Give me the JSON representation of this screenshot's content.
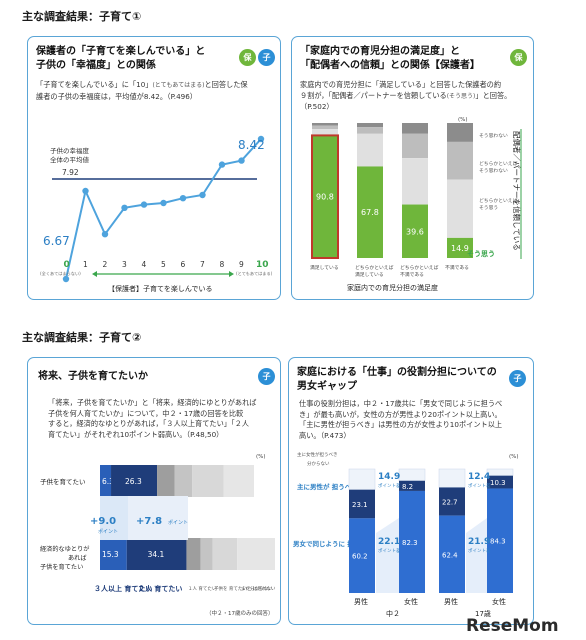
{
  "section1": {
    "title": "主な調査結果：子育て①"
  },
  "section2": {
    "title": "主な調査結果：子育て②"
  },
  "panel_a": {
    "title1": "保護者の「子育てを楽しんでいる」と",
    "title2": "子供の「幸福度」との関係",
    "badge1": "保",
    "badge2": "子",
    "desc1": "「子育てを楽しんでいる」に「10」",
    "desc1_small": "(とてもあてはまる)",
    "desc1_tail": "と回答した保",
    "desc2": "護者の子供の幸福度は，平均値が8.42。（P.496）",
    "avg_label1": "子供の幸福度",
    "avg_label2": "全体の平均値",
    "avg_value": "7.92",
    "start_value": "6.67",
    "end_value": "8.42",
    "x0_note": "(全くあてはまらない)",
    "x10_note": "(とてもあてはまる)",
    "axis_caption": "【保護者】子育てを楽しんでいる"
  },
  "panel_b": {
    "title1": "「家庭内での育児分担の満足度」と",
    "title2": "「配偶者への信頼」との関係【保護者】",
    "badge": "保",
    "desc1": "家庭内での育児分担に「満足している」と回答した保護者の約",
    "desc2": "９割が，「配偶者／パートナーを信頼している",
    "desc2_small": "(そう思う)",
    "desc2_tail": "」と回答。",
    "desc3": "（P.502）",
    "percent_label": "(%)",
    "legend": [
      "そう思わない",
      "どちらかといえば そう思わない",
      "どちらかといえば そう思う",
      "そう思う"
    ],
    "side_label": "配偶者／パートナーを信頼している",
    "caption": "家庭内での育児分担の満足度"
  },
  "panel_c": {
    "title": "将来、子供を育てたいか",
    "badge": "子",
    "desc1": "「将来，子供を育てたいか」と「将来，経済的にゆとりがあれば",
    "desc2": "子供を何人育てたいか」について，中２・17歳の回答を比較",
    "desc3": "すると，経済的なゆとりがあれば，「３人以上育てたい」「２人",
    "desc4": "育てたい」がそれぞれ10ポイント弱高い。（P.48,50）",
    "percent_label": "(%)",
    "row1_label": "子供を育てたい",
    "row2_label1": "経済的なゆとりが",
    "row2_label2": "あれば",
    "row2_label3": "子供を育てたい",
    "diff1": "+9.0",
    "diff1_unit": "ポイント",
    "diff2": "+7.8",
    "diff2_unit": "ポイント",
    "legend_main": [
      "３人以上 育てたい",
      "２人 育てたい"
    ],
    "legend_small": [
      "１人 育てたい",
      "子供を 育てたいと は思わない",
      "まだ分からない"
    ],
    "footnote": "（中２・17歳のみの回答）"
  },
  "panel_d": {
    "title1": "家庭における「仕事」の役割分担についての",
    "title2": "男女ギャップ",
    "badge": "子",
    "desc1": "仕事の役割分担は，中２・17歳共に「男女で同じように担うべ",
    "desc2": "き」が最も高いが，女性の方が男性より20ポイント以上高い。",
    "desc3": "「主に男性が担うべき」は男性の方が女性より10ポイント以上",
    "desc4": "高い。（P.473）",
    "percent_label": "(%)",
    "legend_small1": "主に女性が担うべき",
    "legend_small2": "分からない",
    "cat_men": "主に男性が 担うべき",
    "cat_equal": "男女で同じように 担うべき",
    "gap_unit": "ポイント差",
    "group_labels": [
      "男性",
      "女性",
      "男性",
      "女性"
    ],
    "age_labels": [
      "中２",
      "17歳"
    ]
  },
  "watermark": "ReseMom",
  "chart_data": [
    {
      "type": "line",
      "title": "保護者の「子育てを楽しんでいる」と子供の「幸福度」との関係",
      "x": [
        0,
        1,
        2,
        3,
        4,
        5,
        6,
        7,
        8,
        9,
        10
      ],
      "values": [
        6.67,
        7.77,
        7.23,
        7.56,
        7.6,
        7.62,
        7.68,
        7.72,
        8.1,
        8.15,
        8.42
      ],
      "reference_line": 7.92,
      "xlabel": "【保護者】子育てを楽しんでいる"
    },
    {
      "type": "bar",
      "title": "「家庭内での育児分担の満足度」と「配偶者への信頼」との関係",
      "categories": [
        "満足している",
        "どちらかといえば 満足している",
        "どちらかといえば 不満である",
        "不満である"
      ],
      "series": [
        {
          "name": "そう思う",
          "values": [
            90.8,
            67.8,
            39.6,
            14.9
          ]
        }
      ],
      "ylim": [
        0,
        100
      ]
    },
    {
      "type": "bar",
      "title": "将来、子供を育てたいか",
      "categories": [
        "子供を育てたい",
        "経済的なゆとりがあれば子供を育てたい"
      ],
      "series": [
        {
          "name": "３人以上育てたい",
          "values": [
            6.3,
            15.3
          ]
        },
        {
          "name": "２人育てたい",
          "values": [
            26.3,
            34.1
          ]
        }
      ],
      "differences": [
        9.0,
        7.8
      ]
    },
    {
      "type": "bar",
      "title": "家庭における「仕事」の役割分担についての男女ギャップ",
      "categories": [
        "中２ 男性",
        "中２ 女性",
        "17歳 男性",
        "17歳 女性"
      ],
      "series": [
        {
          "name": "男女で同じように担うべき",
          "values": [
            60.2,
            82.3,
            62.4,
            84.3
          ]
        },
        {
          "name": "主に男性が担うべき",
          "values": [
            23.1,
            8.2,
            22.7,
            10.3
          ]
        }
      ],
      "differences": {
        "中２": {
          "equal": 22.1,
          "men": 14.9
        },
        "17歳": {
          "equal": 21.9,
          "men": 12.4
        }
      }
    }
  ]
}
